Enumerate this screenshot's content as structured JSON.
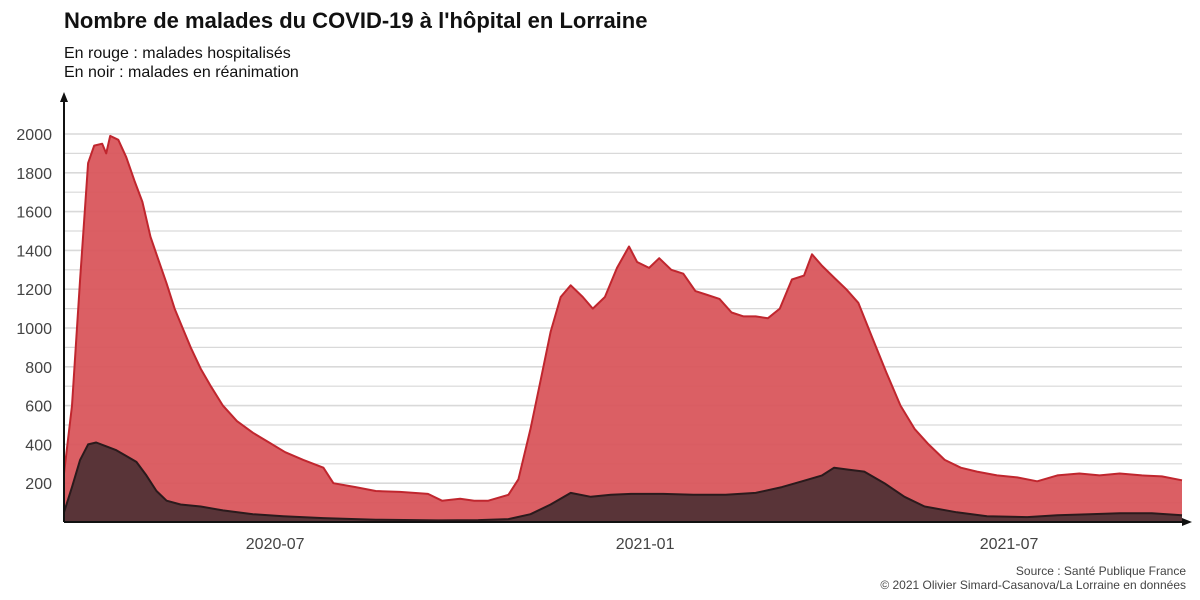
{
  "title": "Nombre de malades du COVID-19 à l'hôpital en Lorraine",
  "subtitle": [
    "En rouge : malades hospitalisés",
    "En noir : malades en réanimation"
  ],
  "caption": [
    "Source : Santé Publique France",
    "© 2021 Olivier Simard-Casanova/La Lorraine en données"
  ],
  "colors": {
    "hospitalises": "#d9565c",
    "hospitalises_line": "#c0262e",
    "reanimation": "#553337",
    "reanimation_line": "#2a1a1c",
    "grid": "#d9d9d9",
    "axis": "#111111"
  },
  "chart_data": {
    "type": "area",
    "title": "Nombre de malades du COVID-19 à l'hôpital en Lorraine",
    "xlabel": "",
    "ylabel": "",
    "xlim": [
      "2020-03-18",
      "2021-09-25"
    ],
    "ylim": [
      0,
      2000
    ],
    "grid": true,
    "yticks": [
      200,
      400,
      600,
      800,
      1000,
      1200,
      1400,
      1600,
      1800,
      2000
    ],
    "xticks": [
      {
        "date": "2020-07-01",
        "label": "2020-07"
      },
      {
        "date": "2021-01-01",
        "label": "2021-01"
      },
      {
        "date": "2021-07-01",
        "label": "2021-07"
      }
    ],
    "series": [
      {
        "name": "malades hospitalisés",
        "color": "#d9565c",
        "points": [
          [
            "2020-03-18",
            250
          ],
          [
            "2020-03-22",
            600
          ],
          [
            "2020-03-26",
            1250
          ],
          [
            "2020-03-30",
            1850
          ],
          [
            "2020-04-02",
            1940
          ],
          [
            "2020-04-06",
            1950
          ],
          [
            "2020-04-08",
            1900
          ],
          [
            "2020-04-10",
            1990
          ],
          [
            "2020-04-14",
            1970
          ],
          [
            "2020-04-18",
            1880
          ],
          [
            "2020-04-22",
            1760
          ],
          [
            "2020-04-26",
            1650
          ],
          [
            "2020-04-30",
            1470
          ],
          [
            "2020-05-04",
            1350
          ],
          [
            "2020-05-08",
            1230
          ],
          [
            "2020-05-12",
            1100
          ],
          [
            "2020-05-16",
            1000
          ],
          [
            "2020-05-20",
            900
          ],
          [
            "2020-05-25",
            790
          ],
          [
            "2020-05-30",
            700
          ],
          [
            "2020-06-05",
            600
          ],
          [
            "2020-06-12",
            520
          ],
          [
            "2020-06-20",
            460
          ],
          [
            "2020-06-28",
            410
          ],
          [
            "2020-07-06",
            360
          ],
          [
            "2020-07-15",
            320
          ],
          [
            "2020-07-25",
            280
          ],
          [
            "2020-07-30",
            200
          ],
          [
            "2020-08-10",
            180
          ],
          [
            "2020-08-20",
            160
          ],
          [
            "2020-09-01",
            155
          ],
          [
            "2020-09-15",
            145
          ],
          [
            "2020-09-22",
            110
          ],
          [
            "2020-10-01",
            120
          ],
          [
            "2020-10-08",
            110
          ],
          [
            "2020-10-15",
            110
          ],
          [
            "2020-10-25",
            140
          ],
          [
            "2020-10-30",
            220
          ],
          [
            "2020-11-05",
            480
          ],
          [
            "2020-11-10",
            730
          ],
          [
            "2020-11-15",
            980
          ],
          [
            "2020-11-20",
            1160
          ],
          [
            "2020-11-25",
            1220
          ],
          [
            "2020-12-01",
            1160
          ],
          [
            "2020-12-06",
            1100
          ],
          [
            "2020-12-12",
            1160
          ],
          [
            "2020-12-18",
            1310
          ],
          [
            "2020-12-24",
            1420
          ],
          [
            "2020-12-28",
            1340
          ],
          [
            "2021-01-03",
            1310
          ],
          [
            "2021-01-08",
            1360
          ],
          [
            "2021-01-14",
            1300
          ],
          [
            "2021-01-20",
            1280
          ],
          [
            "2021-01-26",
            1190
          ],
          [
            "2021-02-01",
            1170
          ],
          [
            "2021-02-07",
            1150
          ],
          [
            "2021-02-13",
            1080
          ],
          [
            "2021-02-19",
            1060
          ],
          [
            "2021-02-25",
            1060
          ],
          [
            "2021-03-03",
            1050
          ],
          [
            "2021-03-09",
            1100
          ],
          [
            "2021-03-15",
            1250
          ],
          [
            "2021-03-21",
            1270
          ],
          [
            "2021-03-25",
            1380
          ],
          [
            "2021-03-30",
            1320
          ],
          [
            "2021-04-05",
            1260
          ],
          [
            "2021-04-11",
            1200
          ],
          [
            "2021-04-17",
            1130
          ],
          [
            "2021-04-24",
            950
          ],
          [
            "2021-05-01",
            770
          ],
          [
            "2021-05-08",
            600
          ],
          [
            "2021-05-15",
            480
          ],
          [
            "2021-05-22",
            400
          ],
          [
            "2021-05-30",
            320
          ],
          [
            "2021-06-07",
            280
          ],
          [
            "2021-06-15",
            260
          ],
          [
            "2021-06-25",
            240
          ],
          [
            "2021-07-05",
            230
          ],
          [
            "2021-07-15",
            210
          ],
          [
            "2021-07-25",
            240
          ],
          [
            "2021-08-05",
            250
          ],
          [
            "2021-08-15",
            240
          ],
          [
            "2021-08-25",
            250
          ],
          [
            "2021-09-05",
            240
          ],
          [
            "2021-09-15",
            235
          ],
          [
            "2021-09-25",
            215
          ]
        ]
      },
      {
        "name": "malades en réanimation",
        "color": "#553337",
        "points": [
          [
            "2020-03-18",
            50
          ],
          [
            "2020-03-22",
            180
          ],
          [
            "2020-03-26",
            320
          ],
          [
            "2020-03-30",
            400
          ],
          [
            "2020-04-03",
            410
          ],
          [
            "2020-04-08",
            390
          ],
          [
            "2020-04-13",
            370
          ],
          [
            "2020-04-18",
            340
          ],
          [
            "2020-04-23",
            310
          ],
          [
            "2020-04-28",
            240
          ],
          [
            "2020-05-03",
            160
          ],
          [
            "2020-05-08",
            110
          ],
          [
            "2020-05-15",
            90
          ],
          [
            "2020-05-25",
            80
          ],
          [
            "2020-06-05",
            60
          ],
          [
            "2020-06-20",
            40
          ],
          [
            "2020-07-05",
            30
          ],
          [
            "2020-07-25",
            20
          ],
          [
            "2020-08-20",
            12
          ],
          [
            "2020-09-20",
            8
          ],
          [
            "2020-10-10",
            10
          ],
          [
            "2020-10-25",
            15
          ],
          [
            "2020-11-05",
            40
          ],
          [
            "2020-11-15",
            90
          ],
          [
            "2020-11-25",
            150
          ],
          [
            "2020-12-05",
            130
          ],
          [
            "2020-12-15",
            140
          ],
          [
            "2020-12-25",
            145
          ],
          [
            "2021-01-10",
            145
          ],
          [
            "2021-01-25",
            140
          ],
          [
            "2021-02-10",
            140
          ],
          [
            "2021-02-25",
            150
          ],
          [
            "2021-03-10",
            180
          ],
          [
            "2021-03-20",
            210
          ],
          [
            "2021-03-30",
            240
          ],
          [
            "2021-04-05",
            280
          ],
          [
            "2021-04-12",
            270
          ],
          [
            "2021-04-20",
            260
          ],
          [
            "2021-04-30",
            200
          ],
          [
            "2021-05-10",
            130
          ],
          [
            "2021-05-20",
            80
          ],
          [
            "2021-06-05",
            50
          ],
          [
            "2021-06-20",
            30
          ],
          [
            "2021-07-10",
            25
          ],
          [
            "2021-07-25",
            35
          ],
          [
            "2021-08-10",
            40
          ],
          [
            "2021-08-25",
            45
          ],
          [
            "2021-09-10",
            45
          ],
          [
            "2021-09-25",
            35
          ]
        ]
      }
    ]
  }
}
